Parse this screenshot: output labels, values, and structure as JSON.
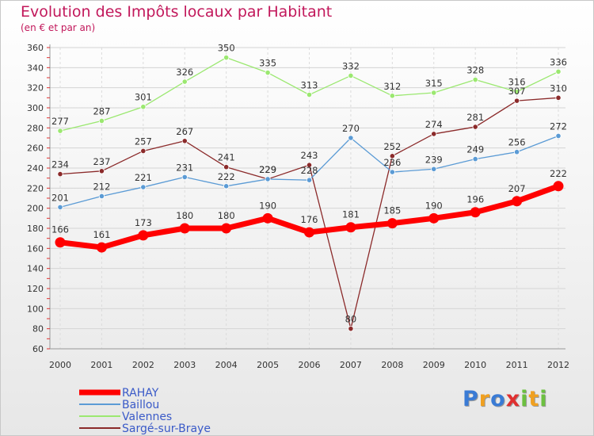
{
  "chart_data": {
    "type": "line",
    "title": "Evolution des Impôts locaux par Habitant",
    "subtitle": "(en € et par an)",
    "xlabel": "",
    "ylabel": "",
    "categories": [
      "2000",
      "2001",
      "2002",
      "2003",
      "2004",
      "2005",
      "2006",
      "2007",
      "2008",
      "2009",
      "2010",
      "2011",
      "2012"
    ],
    "ylim": [
      60,
      360
    ],
    "yticks": [
      60,
      80,
      100,
      120,
      140,
      160,
      180,
      200,
      220,
      240,
      260,
      280,
      300,
      320,
      340,
      360
    ],
    "grid": true,
    "legend_position": "bottom-left",
    "series": [
      {
        "name": "RAHAY",
        "color": "#ff0000",
        "values": [
          166,
          161,
          173,
          180,
          180,
          190,
          176,
          181,
          185,
          190,
          196,
          207,
          222
        ]
      },
      {
        "name": "Baillou",
        "color": "#5b9bd5",
        "values": [
          201,
          212,
          221,
          231,
          222,
          229,
          228,
          270,
          236,
          239,
          249,
          256,
          272
        ]
      },
      {
        "name": "Valennes",
        "color": "#9be870",
        "values": [
          277,
          287,
          301,
          326,
          350,
          335,
          313,
          332,
          312,
          315,
          328,
          316,
          336
        ]
      },
      {
        "name": "Sargé-sur-Braye",
        "color": "#8b2a2a",
        "values": [
          234,
          237,
          257,
          267,
          241,
          229,
          243,
          80,
          252,
          274,
          281,
          307,
          310
        ]
      }
    ]
  },
  "logo": {
    "letters": [
      "P",
      "r",
      "o",
      "x",
      "i",
      "t",
      "i"
    ],
    "colors": [
      "#3a7bd5",
      "#f0a020",
      "#3a7bd5",
      "#e03030",
      "#6cc040",
      "#f0a020",
      "#6cc040"
    ]
  }
}
